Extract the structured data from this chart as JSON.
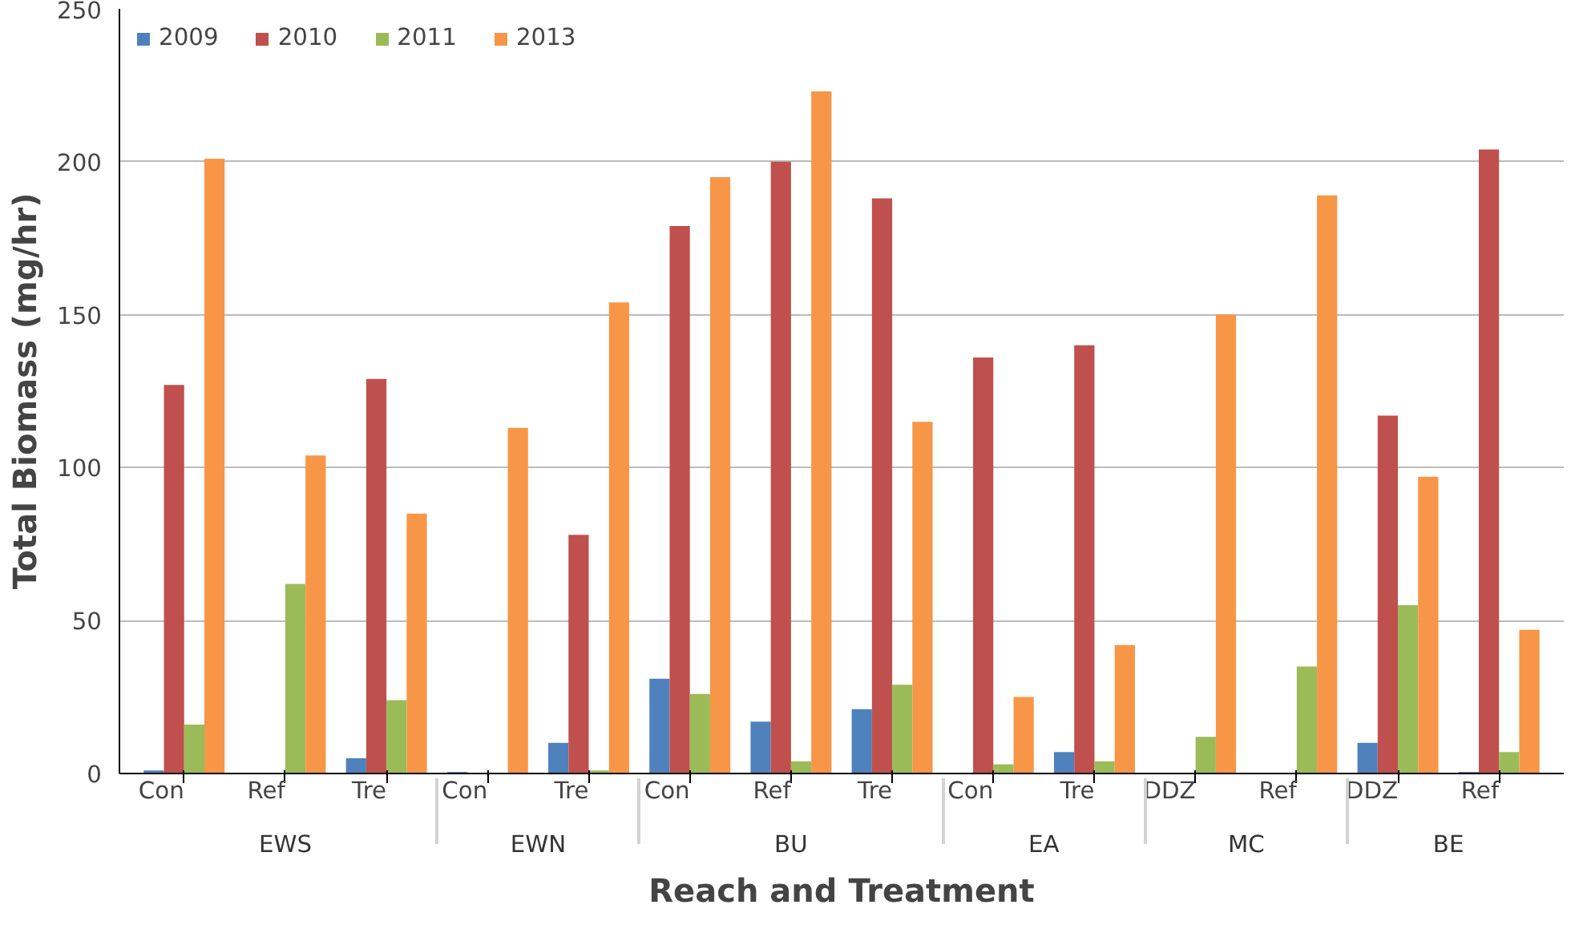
{
  "chart_data": {
    "type": "bar",
    "xlabel": "Reach and Treatment",
    "ylabel": "Total Biomass (mg/hr)",
    "categories": [
      "Con",
      "Ref",
      "Tre",
      "Con",
      "Tre",
      "Con",
      "Ref",
      "Tre",
      "Con",
      "Tre",
      "DDZ",
      "Ref",
      "DDZ",
      "Ref"
    ],
    "annotations": [
      "EWS",
      "EWN",
      "BU",
      "EA",
      "MC",
      "BE"
    ],
    "series": [
      {
        "name": "2009",
        "color": "#4f81bd",
        "values": [
          1,
          null,
          5,
          0.5,
          10,
          31,
          17,
          21,
          null,
          7,
          null,
          null,
          10,
          0.5
        ]
      },
      {
        "name": "2010",
        "color": "#c0504d",
        "values": [
          127,
          null,
          129,
          null,
          78,
          179,
          200,
          188,
          136,
          140,
          null,
          null,
          117,
          204
        ]
      },
      {
        "name": "2011",
        "color": "#9bbb59",
        "values": [
          16,
          62,
          24,
          null,
          1,
          26,
          4,
          29,
          3,
          4,
          12,
          35,
          55,
          7
        ]
      },
      {
        "name": "2013",
        "color": "#f79646",
        "values": [
          201,
          104,
          85,
          113,
          154,
          195,
          223,
          115,
          25,
          42,
          150,
          189,
          97,
          47
        ]
      }
    ],
    "ylim": [
      0,
      250
    ],
    "yticks": [
      0,
      50,
      100,
      150,
      200,
      250
    ],
    "grid": "y",
    "legend": "top left"
  }
}
